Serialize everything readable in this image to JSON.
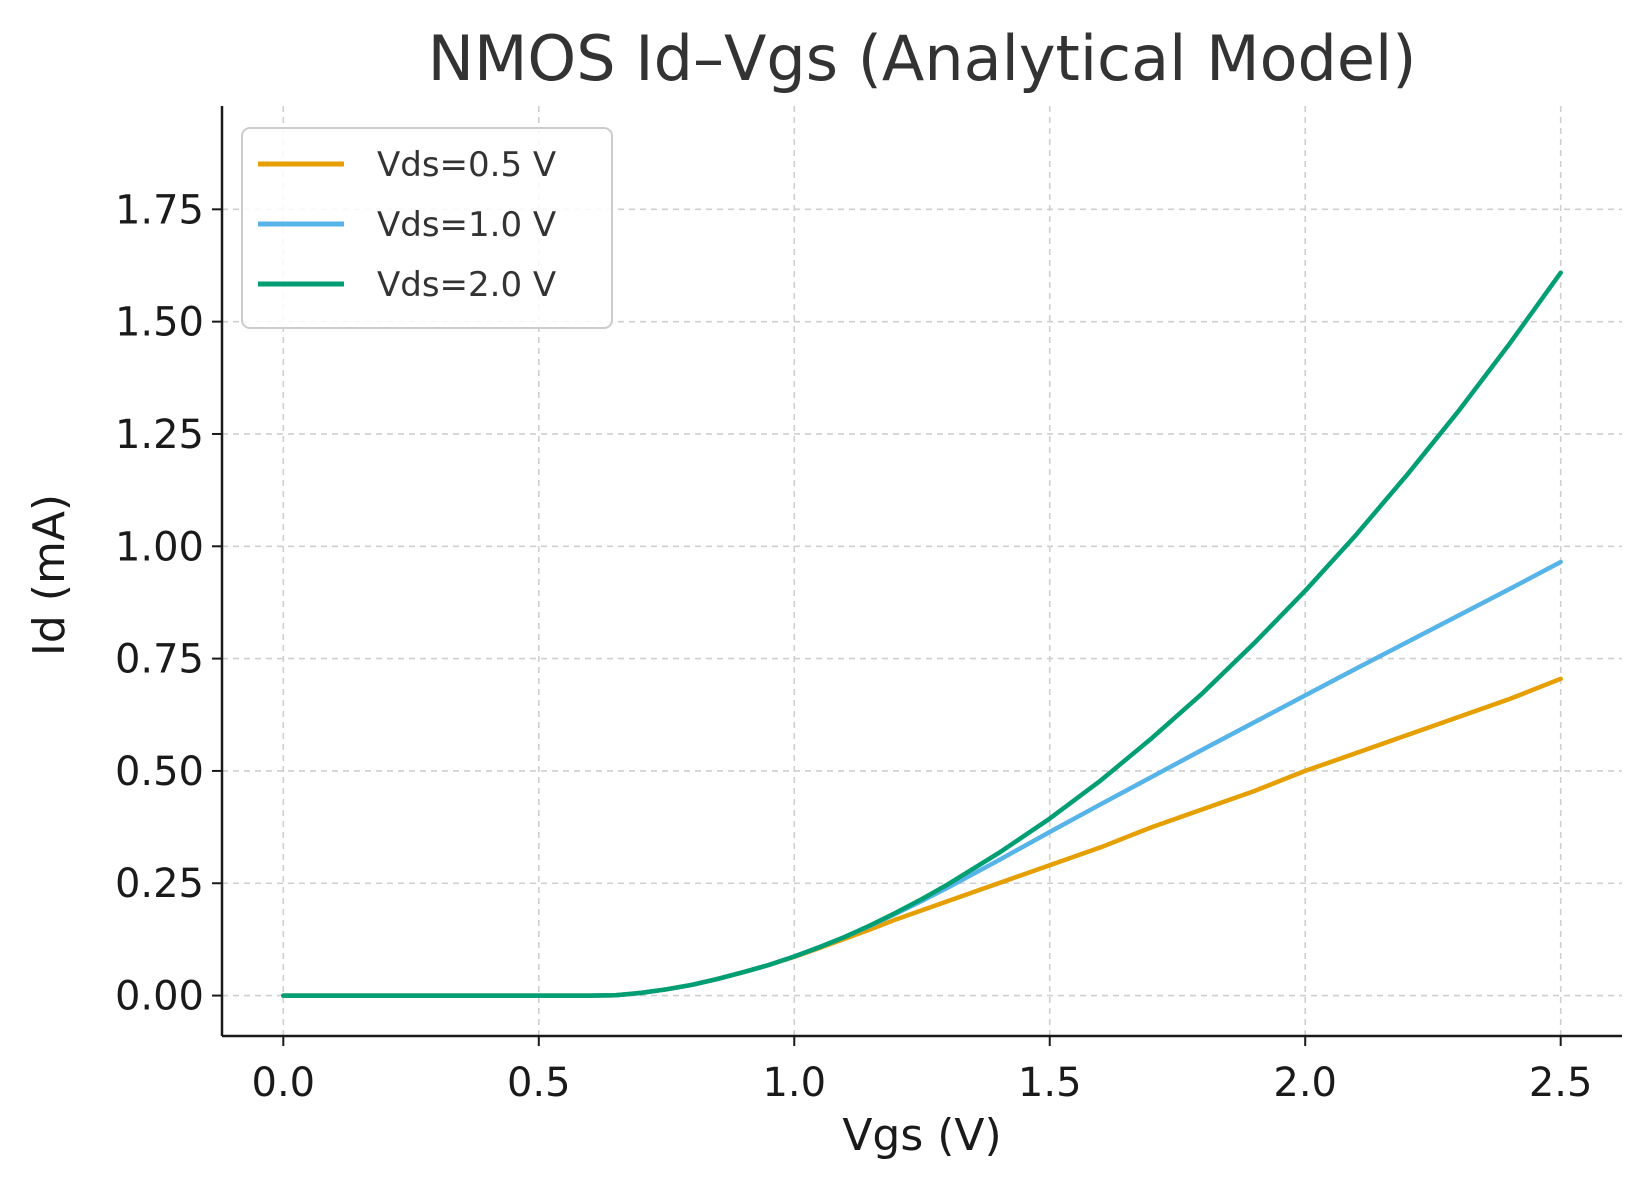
{
  "chart_data": {
    "type": "line",
    "title": "NMOS Id–Vgs (Analytical Model)",
    "xlabel": "Vgs (V)",
    "ylabel": "Id (mA)",
    "xlim": [
      -0.12,
      2.62
    ],
    "ylim": [
      -0.09,
      1.98
    ],
    "x_ticks": [
      0.0,
      0.5,
      1.0,
      1.5,
      2.0,
      2.5
    ],
    "x_tick_labels": [
      "0.0",
      "0.5",
      "1.0",
      "1.5",
      "2.0",
      "2.5"
    ],
    "y_ticks": [
      0.0,
      0.25,
      0.5,
      0.75,
      1.0,
      1.25,
      1.5,
      1.75
    ],
    "y_tick_labels": [
      "0.00",
      "0.25",
      "0.50",
      "0.75",
      "1.00",
      "1.25",
      "1.50",
      "1.75"
    ],
    "grid": true,
    "legend_position": "top-left",
    "x": [
      0.0,
      0.1,
      0.2,
      0.3,
      0.4,
      0.5,
      0.6,
      0.65,
      0.7,
      0.75,
      0.8,
      0.85,
      0.9,
      0.95,
      1.0,
      1.05,
      1.1,
      1.15,
      1.2,
      1.25,
      1.3,
      1.4,
      1.5,
      1.6,
      1.7,
      1.8,
      1.9,
      2.0,
      2.1,
      2.2,
      2.3,
      2.4,
      2.5
    ],
    "series": [
      {
        "name": "Vds=0.5 V",
        "color": "#E69F00",
        "values": [
          0.0,
          0.0,
          0.0,
          0.0,
          0.0,
          0.0,
          0.0,
          0.0008,
          0.006,
          0.014,
          0.024,
          0.037,
          0.052,
          0.068,
          0.086,
          0.106,
          0.127,
          0.148,
          0.17,
          0.19,
          0.21,
          0.25,
          0.29,
          0.33,
          0.375,
          0.415,
          0.455,
          0.5,
          0.54,
          0.58,
          0.62,
          0.66,
          0.705
        ]
      },
      {
        "name": "Vds=1.0 V",
        "color": "#56B4E9",
        "values": [
          0.0,
          0.0,
          0.0,
          0.0,
          0.0,
          0.0,
          0.0,
          0.0008,
          0.006,
          0.014,
          0.024,
          0.037,
          0.052,
          0.068,
          0.087,
          0.108,
          0.131,
          0.156,
          0.183,
          0.211,
          0.24,
          0.301,
          0.364,
          0.426,
          0.487,
          0.548,
          0.608,
          0.668,
          0.728,
          0.787,
          0.846,
          0.905,
          0.965
        ]
      },
      {
        "name": "Vds=2.0 V",
        "color": "#009E73",
        "values": [
          0.0,
          0.0,
          0.0,
          0.0,
          0.0,
          0.0,
          0.0,
          0.0008,
          0.006,
          0.014,
          0.024,
          0.037,
          0.052,
          0.068,
          0.087,
          0.108,
          0.131,
          0.157,
          0.185,
          0.215,
          0.247,
          0.317,
          0.394,
          0.479,
          0.573,
          0.674,
          0.784,
          0.901,
          1.026,
          1.16,
          1.301,
          1.451,
          1.609
        ]
      }
    ]
  }
}
